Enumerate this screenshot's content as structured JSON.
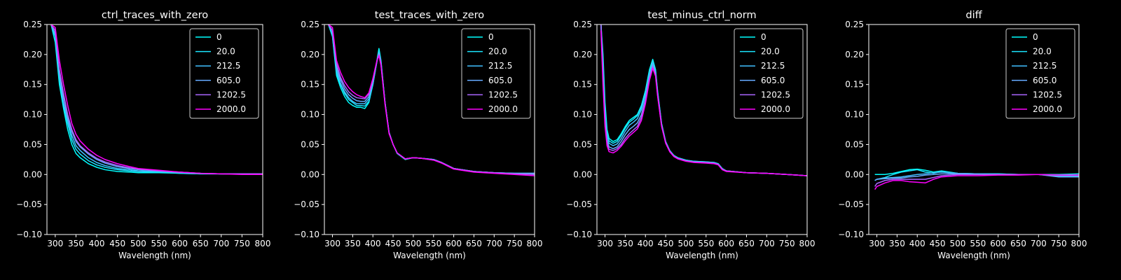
{
  "series_colors": [
    "#00ffff",
    "#1ae5ff",
    "#40bfff",
    "#66aaff",
    "#aa66ff",
    "#ff00ff"
  ],
  "chart_data": [
    {
      "type": "line",
      "title": "ctrl_traces_with_zero",
      "xlabel": "Wavelength (nm)",
      "ylabel": "",
      "xlim": [
        280,
        800
      ],
      "ylim": [
        -0.1,
        0.25
      ],
      "xticks": [
        "300",
        "350",
        "400",
        "450",
        "500",
        "550",
        "600",
        "650",
        "700",
        "750",
        "800"
      ],
      "yticks": [
        "−0.10",
        "−0.05",
        "0.00",
        "0.05",
        "0.10",
        "0.15",
        "0.20",
        "0.25"
      ],
      "legend": "top-right",
      "x": [
        290,
        300,
        310,
        320,
        330,
        340,
        350,
        360,
        380,
        400,
        420,
        450,
        480,
        500,
        550,
        600,
        650,
        700,
        750,
        800
      ],
      "series": [
        {
          "name": "0",
          "values": [
            0.35,
            0.22,
            0.15,
            0.11,
            0.075,
            0.05,
            0.035,
            0.028,
            0.018,
            0.012,
            0.008,
            0.005,
            0.004,
            0.003,
            0.003,
            0.002,
            0.001,
            0.001,
            0.001,
            0.001
          ]
        },
        {
          "name": "20.0",
          "values": [
            0.35,
            0.23,
            0.16,
            0.115,
            0.085,
            0.058,
            0.042,
            0.034,
            0.023,
            0.016,
            0.012,
            0.008,
            0.006,
            0.005,
            0.004,
            0.002,
            0.001,
            0.001,
            0.001,
            0.001
          ]
        },
        {
          "name": "212.5",
          "values": [
            0.35,
            0.23,
            0.165,
            0.12,
            0.09,
            0.065,
            0.048,
            0.04,
            0.028,
            0.02,
            0.015,
            0.01,
            0.008,
            0.006,
            0.005,
            0.003,
            0.002,
            0.001,
            0.001,
            0.001
          ]
        },
        {
          "name": "605.0",
          "values": [
            0.35,
            0.235,
            0.17,
            0.13,
            0.095,
            0.072,
            0.055,
            0.046,
            0.034,
            0.025,
            0.019,
            0.013,
            0.01,
            0.008,
            0.006,
            0.004,
            0.002,
            0.001,
            0.001,
            0.001
          ]
        },
        {
          "name": "1202.5",
          "values": [
            0.35,
            0.24,
            0.175,
            0.135,
            0.1,
            0.075,
            0.058,
            0.048,
            0.036,
            0.027,
            0.021,
            0.015,
            0.011,
            0.009,
            0.006,
            0.004,
            0.002,
            0.001,
            0.001,
            0.001
          ]
        },
        {
          "name": "2000.0",
          "values": [
            0.35,
            0.245,
            0.19,
            0.15,
            0.115,
            0.085,
            0.067,
            0.056,
            0.042,
            0.032,
            0.025,
            0.018,
            0.013,
            0.01,
            0.007,
            0.004,
            0.002,
            0.001,
            0.0,
            0.0
          ]
        }
      ]
    },
    {
      "type": "line",
      "title": "test_traces_with_zero",
      "xlabel": "Wavelength (nm)",
      "ylabel": "",
      "xlim": [
        280,
        800
      ],
      "ylim": [
        -0.1,
        0.25
      ],
      "xticks": [
        "300",
        "350",
        "400",
        "450",
        "500",
        "550",
        "600",
        "650",
        "700",
        "750",
        "800"
      ],
      "yticks": [
        "−0.10",
        "−0.05",
        "0.00",
        "0.05",
        "0.10",
        "0.15",
        "0.20",
        "0.25"
      ],
      "legend": "top-right",
      "x": [
        290,
        300,
        310,
        320,
        330,
        340,
        350,
        360,
        370,
        380,
        390,
        400,
        410,
        415,
        420,
        430,
        440,
        450,
        460,
        470,
        480,
        500,
        520,
        550,
        570,
        600,
        650,
        700,
        750,
        800
      ],
      "series": [
        {
          "name": "0",
          "values": [
            0.35,
            0.23,
            0.165,
            0.145,
            0.13,
            0.12,
            0.115,
            0.112,
            0.112,
            0.11,
            0.12,
            0.15,
            0.19,
            0.21,
            0.19,
            0.12,
            0.07,
            0.05,
            0.035,
            0.03,
            0.025,
            0.028,
            0.027,
            0.025,
            0.02,
            0.01,
            0.005,
            0.003,
            0.002,
            0.002
          ]
        },
        {
          "name": "20.0",
          "values": [
            0.35,
            0.23,
            0.17,
            0.15,
            0.135,
            0.125,
            0.12,
            0.115,
            0.115,
            0.114,
            0.122,
            0.15,
            0.188,
            0.205,
            0.188,
            0.12,
            0.07,
            0.05,
            0.036,
            0.031,
            0.026,
            0.028,
            0.027,
            0.025,
            0.02,
            0.01,
            0.005,
            0.003,
            0.002,
            0.002
          ]
        },
        {
          "name": "212.5",
          "values": [
            0.35,
            0.235,
            0.175,
            0.152,
            0.138,
            0.128,
            0.122,
            0.118,
            0.118,
            0.118,
            0.126,
            0.152,
            0.188,
            0.203,
            0.186,
            0.12,
            0.07,
            0.05,
            0.036,
            0.031,
            0.026,
            0.028,
            0.027,
            0.025,
            0.02,
            0.01,
            0.005,
            0.003,
            0.002,
            0.002
          ]
        },
        {
          "name": "605.0",
          "values": [
            0.35,
            0.24,
            0.18,
            0.158,
            0.143,
            0.133,
            0.127,
            0.123,
            0.122,
            0.122,
            0.13,
            0.155,
            0.189,
            0.202,
            0.185,
            0.12,
            0.07,
            0.05,
            0.036,
            0.031,
            0.026,
            0.028,
            0.027,
            0.025,
            0.02,
            0.01,
            0.005,
            0.003,
            0.002,
            0.002
          ]
        },
        {
          "name": "1202.5",
          "values": [
            0.35,
            0.24,
            0.185,
            0.162,
            0.148,
            0.138,
            0.132,
            0.128,
            0.127,
            0.126,
            0.134,
            0.158,
            0.19,
            0.2,
            0.183,
            0.118,
            0.069,
            0.05,
            0.036,
            0.031,
            0.026,
            0.028,
            0.027,
            0.024,
            0.02,
            0.01,
            0.005,
            0.003,
            0.001,
            0.0
          ]
        },
        {
          "name": "2000.0",
          "values": [
            0.35,
            0.245,
            0.19,
            0.17,
            0.155,
            0.145,
            0.138,
            0.133,
            0.13,
            0.128,
            0.136,
            0.16,
            0.19,
            0.198,
            0.182,
            0.117,
            0.068,
            0.05,
            0.036,
            0.031,
            0.026,
            0.028,
            0.027,
            0.024,
            0.019,
            0.009,
            0.004,
            0.002,
            0.0,
            -0.002
          ]
        }
      ]
    },
    {
      "type": "line",
      "title": "test_minus_ctrl_norm",
      "xlabel": "Wavelength (nm)",
      "ylabel": "",
      "xlim": [
        280,
        800
      ],
      "ylim": [
        -0.1,
        0.25
      ],
      "xticks": [
        "300",
        "350",
        "400",
        "450",
        "500",
        "550",
        "600",
        "650",
        "700",
        "750",
        "800"
      ],
      "yticks": [
        "−0.10",
        "−0.05",
        "0.00",
        "0.05",
        "0.10",
        "0.15",
        "0.20",
        "0.25"
      ],
      "legend": "top-right",
      "x": [
        290,
        295,
        300,
        305,
        310,
        320,
        330,
        340,
        350,
        360,
        370,
        380,
        390,
        400,
        410,
        418,
        425,
        430,
        440,
        450,
        460,
        470,
        480,
        500,
        520,
        550,
        570,
        580,
        590,
        600,
        650,
        700,
        750,
        800
      ],
      "series": [
        {
          "name": "0",
          "values": [
            0.26,
            0.2,
            0.12,
            0.075,
            0.06,
            0.055,
            0.058,
            0.068,
            0.08,
            0.09,
            0.095,
            0.1,
            0.115,
            0.14,
            0.175,
            0.192,
            0.175,
            0.14,
            0.085,
            0.055,
            0.04,
            0.032,
            0.028,
            0.024,
            0.022,
            0.021,
            0.02,
            0.018,
            0.01,
            0.006,
            0.003,
            0.002,
            0.0,
            -0.002
          ]
        },
        {
          "name": "20.0",
          "values": [
            0.26,
            0.19,
            0.11,
            0.07,
            0.056,
            0.052,
            0.055,
            0.065,
            0.077,
            0.087,
            0.092,
            0.098,
            0.112,
            0.137,
            0.172,
            0.19,
            0.173,
            0.138,
            0.084,
            0.055,
            0.04,
            0.032,
            0.028,
            0.024,
            0.022,
            0.021,
            0.02,
            0.018,
            0.01,
            0.006,
            0.003,
            0.002,
            0.0,
            -0.002
          ]
        },
        {
          "name": "212.5",
          "values": [
            0.25,
            0.18,
            0.1,
            0.065,
            0.052,
            0.048,
            0.051,
            0.06,
            0.072,
            0.082,
            0.087,
            0.093,
            0.108,
            0.133,
            0.168,
            0.186,
            0.17,
            0.136,
            0.083,
            0.054,
            0.04,
            0.031,
            0.027,
            0.023,
            0.021,
            0.02,
            0.019,
            0.017,
            0.009,
            0.006,
            0.003,
            0.002,
            0.0,
            -0.002
          ]
        },
        {
          "name": "605.0",
          "values": [
            0.25,
            0.17,
            0.09,
            0.058,
            0.046,
            0.043,
            0.046,
            0.055,
            0.066,
            0.075,
            0.08,
            0.086,
            0.1,
            0.126,
            0.163,
            0.183,
            0.168,
            0.135,
            0.082,
            0.053,
            0.039,
            0.031,
            0.027,
            0.023,
            0.021,
            0.02,
            0.019,
            0.017,
            0.009,
            0.006,
            0.003,
            0.002,
            0.0,
            -0.002
          ]
        },
        {
          "name": "1202.5",
          "values": [
            0.25,
            0.16,
            0.085,
            0.052,
            0.042,
            0.04,
            0.043,
            0.05,
            0.06,
            0.068,
            0.074,
            0.08,
            0.095,
            0.122,
            0.16,
            0.18,
            0.166,
            0.133,
            0.081,
            0.053,
            0.039,
            0.031,
            0.027,
            0.023,
            0.021,
            0.02,
            0.019,
            0.017,
            0.009,
            0.006,
            0.003,
            0.002,
            0.0,
            -0.002
          ]
        },
        {
          "name": "2000.0",
          "values": [
            0.24,
            0.15,
            0.08,
            0.048,
            0.038,
            0.036,
            0.04,
            0.047,
            0.056,
            0.064,
            0.07,
            0.076,
            0.09,
            0.118,
            0.157,
            0.177,
            0.164,
            0.131,
            0.08,
            0.052,
            0.038,
            0.03,
            0.026,
            0.022,
            0.02,
            0.019,
            0.018,
            0.016,
            0.008,
            0.005,
            0.003,
            0.002,
            0.0,
            -0.002
          ]
        }
      ]
    },
    {
      "type": "line",
      "title": "diff",
      "xlabel": "Wavelength (nm)",
      "ylabel": "",
      "xlim": [
        280,
        800
      ],
      "ylim": [
        -0.1,
        0.25
      ],
      "xticks": [
        "300",
        "350",
        "400",
        "450",
        "500",
        "550",
        "600",
        "650",
        "700",
        "750",
        "800"
      ],
      "yticks": [
        "−0.10",
        "−0.05",
        "0.00",
        "0.05",
        "0.10",
        "0.15",
        "0.20",
        "0.25"
      ],
      "legend": "top-right",
      "x": [
        295,
        300,
        320,
        340,
        360,
        380,
        400,
        420,
        440,
        460,
        480,
        500,
        550,
        600,
        650,
        700,
        750,
        800
      ],
      "series": [
        {
          "name": "0",
          "values": [
            0.0,
            0.0,
            0.0,
            0.002,
            0.005,
            0.008,
            0.009,
            0.007,
            0.004,
            0.006,
            0.004,
            0.002,
            0.001,
            0.001,
            0.0,
            0.0,
            0.0,
            0.001
          ]
        },
        {
          "name": "20.0",
          "values": [
            -0.01,
            -0.008,
            -0.005,
            0.0,
            0.004,
            0.006,
            0.008,
            0.004,
            0.002,
            0.005,
            0.003,
            0.002,
            0.001,
            0.001,
            0.0,
            0.0,
            -0.002,
            -0.002
          ]
        },
        {
          "name": "212.5",
          "values": [
            -0.01,
            -0.008,
            -0.006,
            -0.005,
            -0.004,
            -0.002,
            0.0,
            0.001,
            0.003,
            0.004,
            0.003,
            0.002,
            0.001,
            0.0,
            0.0,
            0.0,
            -0.003,
            -0.003
          ]
        },
        {
          "name": "605.0",
          "values": [
            -0.01,
            -0.008,
            -0.007,
            -0.006,
            -0.006,
            -0.004,
            -0.003,
            -0.001,
            0.0,
            0.001,
            0.001,
            0.001,
            0.0,
            0.0,
            0.0,
            0.0,
            -0.004,
            -0.004
          ]
        },
        {
          "name": "1202.5",
          "values": [
            -0.02,
            -0.015,
            -0.01,
            -0.008,
            -0.008,
            -0.008,
            -0.008,
            -0.008,
            -0.005,
            -0.002,
            -0.001,
            0.0,
            0.0,
            0.0,
            0.0,
            0.0,
            -0.001,
            -0.001
          ]
        },
        {
          "name": "2000.0",
          "values": [
            -0.025,
            -0.02,
            -0.014,
            -0.01,
            -0.01,
            -0.012,
            -0.013,
            -0.014,
            -0.008,
            -0.004,
            -0.003,
            -0.002,
            -0.002,
            -0.001,
            -0.001,
            0.0,
            -0.001,
            -0.001
          ]
        }
      ]
    }
  ]
}
